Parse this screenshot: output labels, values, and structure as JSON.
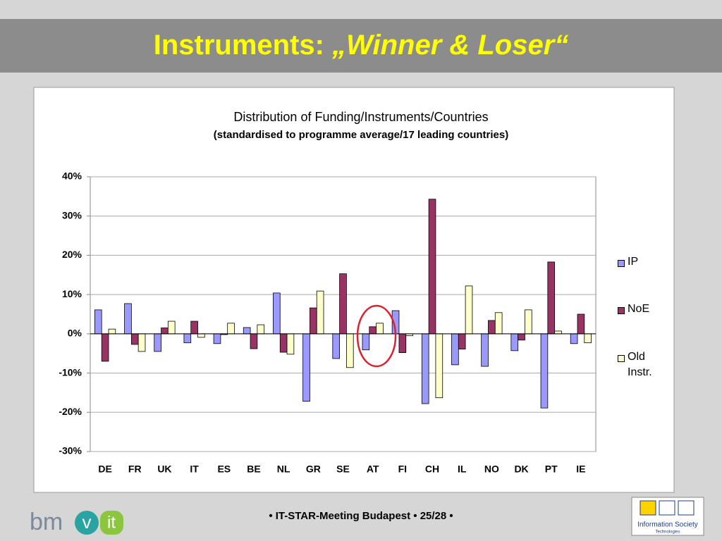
{
  "slide": {
    "title_prefix": "Instruments: ",
    "title_emphasis": "„Winner & Loser“",
    "footer": "• IT-STAR-Meeting Budapest • 25/28 •",
    "logo_left": [
      "bm",
      "v",
      "it"
    ],
    "logo_right": [
      "Information Society",
      "Technologies"
    ]
  },
  "chart_data": {
    "type": "bar",
    "title": "Distribution of Funding/Instruments/Countries",
    "subtitle": "(standardised to programme average/17 leading countries)",
    "categories": [
      "DE",
      "FR",
      "UK",
      "IT",
      "ES",
      "BE",
      "NL",
      "GR",
      "SE",
      "AT",
      "FI",
      "CH",
      "IL",
      "NO",
      "DK",
      "PT",
      "IE"
    ],
    "series": [
      {
        "name": "IP",
        "color": "#9999ff",
        "values": [
          6.1,
          7.7,
          -4.5,
          -2.3,
          -2.5,
          1.6,
          10.4,
          -17.2,
          -6.3,
          -4.1,
          5.9,
          -17.8,
          -7.9,
          -8.3,
          -4.3,
          -18.9,
          -2.5
        ]
      },
      {
        "name": "NoE",
        "color": "#993366",
        "values": [
          -7.0,
          -2.7,
          1.5,
          3.2,
          -0.2,
          -3.8,
          -4.7,
          6.6,
          15.3,
          1.8,
          -4.8,
          34.3,
          -3.9,
          3.4,
          -1.6,
          18.3,
          5.0
        ]
      },
      {
        "name": "Old Instr.",
        "color": "#ffffcc",
        "values": [
          1.2,
          -4.5,
          3.2,
          -0.9,
          2.7,
          2.3,
          -5.2,
          10.9,
          -8.6,
          2.7,
          -0.5,
          -16.3,
          12.2,
          5.4,
          6.1,
          0.7,
          -2.3
        ]
      }
    ],
    "ylim": [
      -30,
      40
    ],
    "yticks": [
      {
        "value": -30,
        "label": "-30%"
      },
      {
        "value": -20,
        "label": "-20%"
      },
      {
        "value": -10,
        "label": "-10%"
      },
      {
        "value": 0,
        "label": "0%"
      },
      {
        "value": 10,
        "label": "10%"
      },
      {
        "value": 20,
        "label": "20%"
      },
      {
        "value": 30,
        "label": "30%"
      },
      {
        "value": 40,
        "label": "40%"
      }
    ],
    "grid": true,
    "legend": "right"
  }
}
